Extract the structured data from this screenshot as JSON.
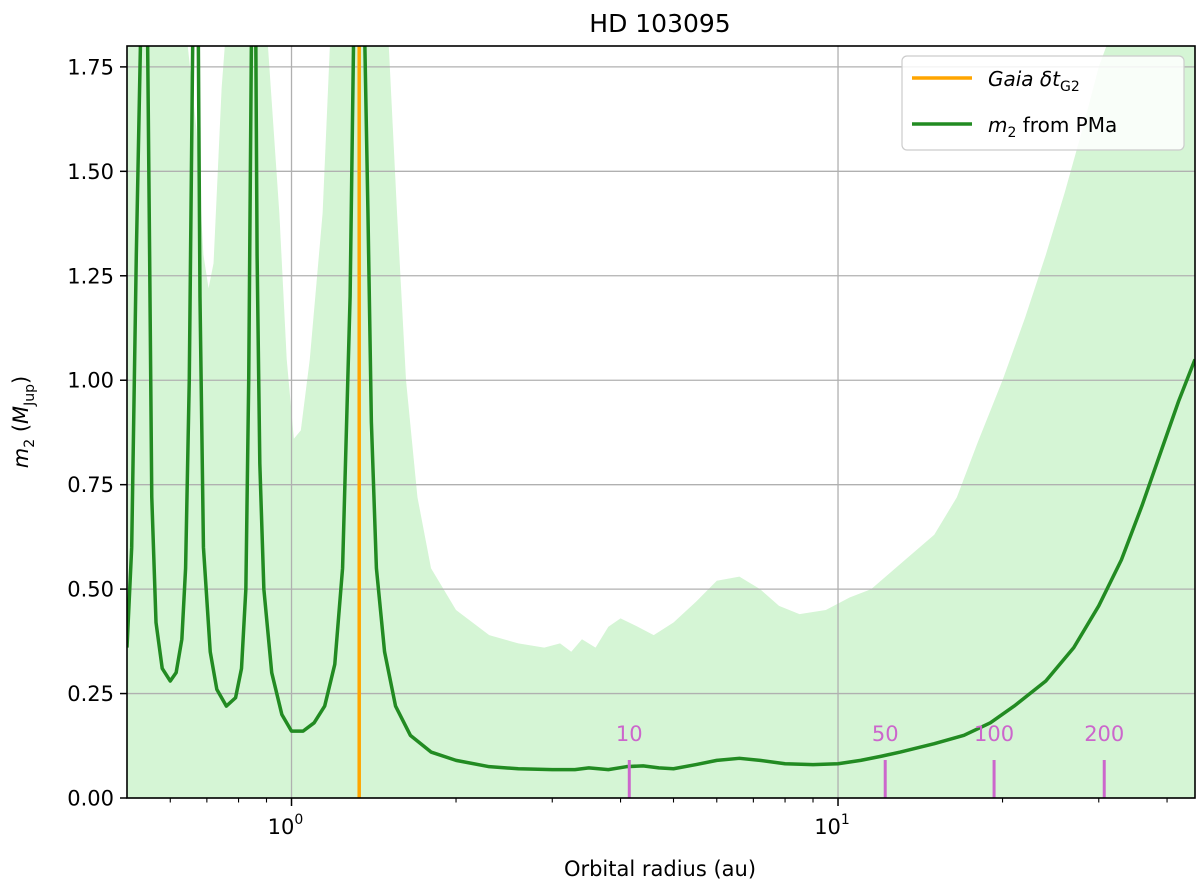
{
  "chart_data": {
    "type": "line",
    "title": "HD 103095",
    "xlabel": "Orbital radius (au)",
    "ylabel": "m2 (MJup)",
    "xscale": "log",
    "xlim": [
      0.5,
      45
    ],
    "ylim": [
      0,
      1.8
    ],
    "xticks": [
      {
        "value": 1,
        "base": "10",
        "exp": "0"
      },
      {
        "value": 10,
        "base": "10",
        "exp": "1"
      }
    ],
    "yticks": [
      "0.00",
      "0.25",
      "0.50",
      "0.75",
      "1.00",
      "1.25",
      "1.50",
      "1.75"
    ],
    "grid": true,
    "legend_position": "top-right",
    "legend": [
      {
        "label_base": "Gaia δt",
        "label_sub": "G2",
        "color": "#ffa500"
      },
      {
        "label_base": "m",
        "label_sub": "2",
        "label_rest": " from PMa",
        "color": "#228b22"
      }
    ],
    "series": [
      {
        "name": "m2 from PMa",
        "color": "#228b22",
        "points": [
          [
            0.5,
            0.36
          ],
          [
            0.51,
            0.6
          ],
          [
            0.52,
            1.3
          ],
          [
            0.53,
            1.85
          ],
          [
            0.545,
            1.85
          ],
          [
            0.55,
            1.3
          ],
          [
            0.555,
            0.72
          ],
          [
            0.565,
            0.42
          ],
          [
            0.58,
            0.31
          ],
          [
            0.6,
            0.28
          ],
          [
            0.615,
            0.3
          ],
          [
            0.63,
            0.38
          ],
          [
            0.64,
            0.55
          ],
          [
            0.65,
            1.0
          ],
          [
            0.66,
            1.85
          ],
          [
            0.675,
            1.85
          ],
          [
            0.68,
            1.2
          ],
          [
            0.69,
            0.6
          ],
          [
            0.71,
            0.35
          ],
          [
            0.73,
            0.26
          ],
          [
            0.76,
            0.22
          ],
          [
            0.79,
            0.24
          ],
          [
            0.81,
            0.31
          ],
          [
            0.825,
            0.5
          ],
          [
            0.835,
            1.0
          ],
          [
            0.845,
            1.85
          ],
          [
            0.86,
            1.85
          ],
          [
            0.865,
            1.3
          ],
          [
            0.875,
            0.8
          ],
          [
            0.89,
            0.5
          ],
          [
            0.92,
            0.3
          ],
          [
            0.96,
            0.2
          ],
          [
            1.0,
            0.16
          ],
          [
            1.05,
            0.16
          ],
          [
            1.1,
            0.18
          ],
          [
            1.15,
            0.22
          ],
          [
            1.2,
            0.32
          ],
          [
            1.24,
            0.55
          ],
          [
            1.28,
            1.2
          ],
          [
            1.3,
            1.85
          ],
          [
            1.36,
            1.85
          ],
          [
            1.38,
            1.4
          ],
          [
            1.4,
            0.9
          ],
          [
            1.43,
            0.55
          ],
          [
            1.48,
            0.35
          ],
          [
            1.55,
            0.22
          ],
          [
            1.65,
            0.15
          ],
          [
            1.8,
            0.11
          ],
          [
            2.0,
            0.09
          ],
          [
            2.3,
            0.075
          ],
          [
            2.6,
            0.07
          ],
          [
            3.0,
            0.068
          ],
          [
            3.3,
            0.068
          ],
          [
            3.5,
            0.072
          ],
          [
            3.8,
            0.068
          ],
          [
            4.1,
            0.075
          ],
          [
            4.4,
            0.077
          ],
          [
            4.7,
            0.072
          ],
          [
            5.0,
            0.07
          ],
          [
            5.5,
            0.08
          ],
          [
            6.0,
            0.09
          ],
          [
            6.6,
            0.095
          ],
          [
            7.2,
            0.09
          ],
          [
            8.0,
            0.082
          ],
          [
            9.0,
            0.08
          ],
          [
            10.0,
            0.082
          ],
          [
            11.0,
            0.09
          ],
          [
            12.0,
            0.1
          ],
          [
            13.0,
            0.11
          ],
          [
            15.0,
            0.13
          ],
          [
            17.0,
            0.15
          ],
          [
            19.0,
            0.18
          ],
          [
            21.0,
            0.22
          ],
          [
            24.0,
            0.28
          ],
          [
            27.0,
            0.36
          ],
          [
            30.0,
            0.46
          ],
          [
            33.0,
            0.57
          ],
          [
            36.0,
            0.7
          ],
          [
            39.0,
            0.83
          ],
          [
            42.0,
            0.95
          ],
          [
            45.0,
            1.05
          ]
        ]
      },
      {
        "name": "Gaia δtG2",
        "color": "#ffa500",
        "x": 1.33
      }
    ],
    "upper_band": {
      "color": "#d5f5d5",
      "points": [
        [
          0.5,
          1.85
        ],
        [
          0.6,
          1.85
        ],
        [
          0.64,
          1.85
        ],
        [
          0.67,
          1.6
        ],
        [
          0.69,
          1.3
        ],
        [
          0.705,
          1.22
        ],
        [
          0.72,
          1.28
        ],
        [
          0.745,
          1.7
        ],
        [
          0.76,
          1.85
        ],
        [
          0.9,
          1.85
        ],
        [
          0.95,
          1.4
        ],
        [
          0.98,
          1.05
        ],
        [
          1.01,
          0.86
        ],
        [
          1.04,
          0.88
        ],
        [
          1.08,
          1.05
        ],
        [
          1.14,
          1.4
        ],
        [
          1.18,
          1.85
        ],
        [
          1.5,
          1.85
        ],
        [
          1.56,
          1.4
        ],
        [
          1.62,
          1.0
        ],
        [
          1.7,
          0.72
        ],
        [
          1.8,
          0.55
        ],
        [
          2.0,
          0.45
        ],
        [
          2.3,
          0.39
        ],
        [
          2.6,
          0.37
        ],
        [
          2.9,
          0.36
        ],
        [
          3.1,
          0.37
        ],
        [
          3.25,
          0.35
        ],
        [
          3.4,
          0.38
        ],
        [
          3.6,
          0.36
        ],
        [
          3.8,
          0.41
        ],
        [
          4.0,
          0.43
        ],
        [
          4.3,
          0.41
        ],
        [
          4.6,
          0.39
        ],
        [
          5.0,
          0.42
        ],
        [
          5.5,
          0.47
        ],
        [
          6.0,
          0.52
        ],
        [
          6.6,
          0.53
        ],
        [
          7.2,
          0.5
        ],
        [
          7.8,
          0.46
        ],
        [
          8.5,
          0.44
        ],
        [
          9.5,
          0.45
        ],
        [
          10.5,
          0.48
        ],
        [
          11.5,
          0.5
        ],
        [
          13.0,
          0.56
        ],
        [
          15.0,
          0.63
        ],
        [
          16.5,
          0.72
        ],
        [
          18.0,
          0.85
        ],
        [
          20.0,
          1.0
        ],
        [
          22.0,
          1.15
        ],
        [
          24.0,
          1.3
        ],
        [
          26.0,
          1.45
        ],
        [
          28.0,
          1.6
        ],
        [
          30.0,
          1.75
        ],
        [
          32.0,
          1.85
        ],
        [
          45.0,
          1.85
        ]
      ]
    },
    "period_markers": [
      {
        "label": "10",
        "x": 4.15
      },
      {
        "label": "50",
        "x": 12.2
      },
      {
        "label": "100",
        "x": 19.3
      },
      {
        "label": "200",
        "x": 30.7
      }
    ],
    "period_color": "#cc66cc"
  }
}
